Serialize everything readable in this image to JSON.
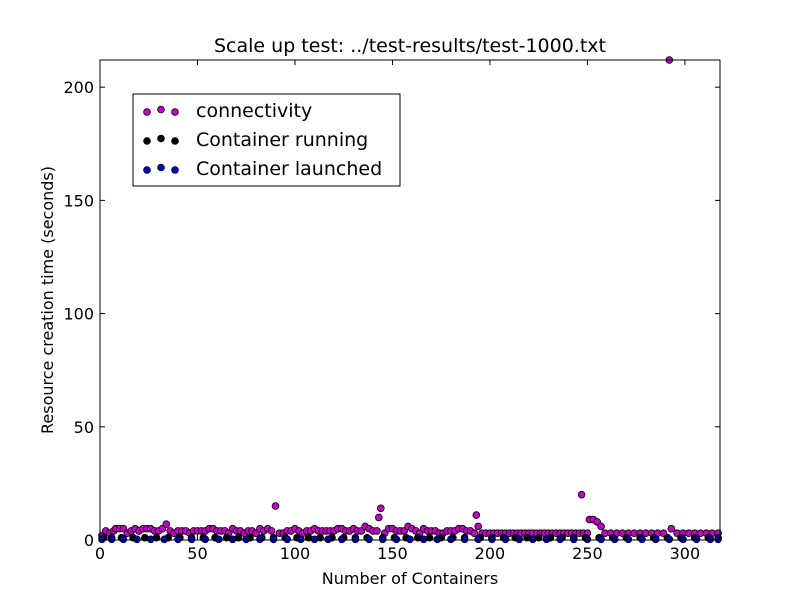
{
  "chart_data": {
    "type": "scatter",
    "title": "Scale up test: ../test-results/test-1000.txt",
    "xlabel": "Number of Containers",
    "ylabel": "Resource creation time (seconds)",
    "xlim": [
      0,
      318
    ],
    "ylim": [
      0,
      212
    ],
    "x_ticks": [
      0,
      50,
      100,
      150,
      200,
      250,
      300
    ],
    "y_ticks": [
      0,
      50,
      100,
      150,
      200
    ],
    "legend_position": "upper-left",
    "grid": false,
    "series": [
      {
        "name": "connectivity",
        "color": "#bf00bf",
        "points": [
          [
            1,
            2
          ],
          [
            3,
            4
          ],
          [
            5,
            3
          ],
          [
            7,
            4
          ],
          [
            8,
            5
          ],
          [
            10,
            5
          ],
          [
            12,
            5
          ],
          [
            14,
            3
          ],
          [
            16,
            4
          ],
          [
            18,
            5
          ],
          [
            20,
            4
          ],
          [
            22,
            5
          ],
          [
            24,
            5
          ],
          [
            26,
            5
          ],
          [
            28,
            4
          ],
          [
            30,
            4
          ],
          [
            32,
            5
          ],
          [
            34,
            7
          ],
          [
            36,
            4
          ],
          [
            38,
            3
          ],
          [
            40,
            4
          ],
          [
            42,
            4
          ],
          [
            44,
            4
          ],
          [
            46,
            3
          ],
          [
            48,
            4
          ],
          [
            50,
            4
          ],
          [
            52,
            4
          ],
          [
            54,
            4
          ],
          [
            56,
            5
          ],
          [
            58,
            5
          ],
          [
            60,
            4
          ],
          [
            62,
            4
          ],
          [
            64,
            4
          ],
          [
            66,
            3
          ],
          [
            68,
            5
          ],
          [
            70,
            4
          ],
          [
            72,
            4
          ],
          [
            74,
            3
          ],
          [
            76,
            4
          ],
          [
            78,
            4
          ],
          [
            80,
            3
          ],
          [
            82,
            5
          ],
          [
            84,
            4
          ],
          [
            86,
            5
          ],
          [
            88,
            4
          ],
          [
            90,
            15
          ],
          [
            92,
            3
          ],
          [
            94,
            3
          ],
          [
            96,
            4
          ],
          [
            98,
            4
          ],
          [
            100,
            5
          ],
          [
            102,
            4
          ],
          [
            104,
            3
          ],
          [
            106,
            4
          ],
          [
            108,
            4
          ],
          [
            110,
            5
          ],
          [
            112,
            4
          ],
          [
            114,
            4
          ],
          [
            116,
            4
          ],
          [
            118,
            4
          ],
          [
            120,
            4
          ],
          [
            122,
            5
          ],
          [
            124,
            5
          ],
          [
            126,
            4
          ],
          [
            128,
            4
          ],
          [
            130,
            5
          ],
          [
            132,
            4
          ],
          [
            134,
            4
          ],
          [
            136,
            6
          ],
          [
            138,
            5
          ],
          [
            140,
            4
          ],
          [
            142,
            4
          ],
          [
            143,
            10
          ],
          [
            144,
            14
          ],
          [
            146,
            3
          ],
          [
            148,
            5
          ],
          [
            150,
            5
          ],
          [
            152,
            4
          ],
          [
            154,
            4
          ],
          [
            156,
            4
          ],
          [
            158,
            6
          ],
          [
            160,
            5
          ],
          [
            162,
            4
          ],
          [
            164,
            3
          ],
          [
            166,
            5
          ],
          [
            168,
            4
          ],
          [
            170,
            4
          ],
          [
            172,
            4
          ],
          [
            174,
            3
          ],
          [
            176,
            3
          ],
          [
            178,
            4
          ],
          [
            180,
            4
          ],
          [
            182,
            4
          ],
          [
            184,
            5
          ],
          [
            186,
            5
          ],
          [
            188,
            4
          ],
          [
            190,
            4
          ],
          [
            192,
            3
          ],
          [
            193,
            11
          ],
          [
            194,
            6
          ],
          [
            196,
            3
          ],
          [
            198,
            3
          ],
          [
            200,
            3
          ],
          [
            202,
            3
          ],
          [
            204,
            3
          ],
          [
            206,
            3
          ],
          [
            208,
            3
          ],
          [
            210,
            3
          ],
          [
            212,
            3
          ],
          [
            214,
            3
          ],
          [
            216,
            3
          ],
          [
            218,
            3
          ],
          [
            220,
            3
          ],
          [
            222,
            3
          ],
          [
            224,
            3
          ],
          [
            226,
            3
          ],
          [
            228,
            3
          ],
          [
            230,
            3
          ],
          [
            232,
            3
          ],
          [
            234,
            3
          ],
          [
            236,
            3
          ],
          [
            238,
            3
          ],
          [
            240,
            3
          ],
          [
            242,
            3
          ],
          [
            244,
            3
          ],
          [
            246,
            3
          ],
          [
            247,
            20
          ],
          [
            248,
            3
          ],
          [
            250,
            3
          ],
          [
            251,
            9
          ],
          [
            253,
            9
          ],
          [
            255,
            8
          ],
          [
            257,
            6
          ],
          [
            259,
            3
          ],
          [
            262,
            3
          ],
          [
            265,
            3
          ],
          [
            268,
            3
          ],
          [
            271,
            3
          ],
          [
            274,
            3
          ],
          [
            277,
            3
          ],
          [
            280,
            3
          ],
          [
            283,
            3
          ],
          [
            286,
            3
          ],
          [
            289,
            3
          ],
          [
            292,
            212
          ],
          [
            293,
            5
          ],
          [
            296,
            3
          ],
          [
            299,
            3
          ],
          [
            302,
            3
          ],
          [
            305,
            3
          ],
          [
            308,
            3
          ],
          [
            311,
            3
          ],
          [
            314,
            3
          ],
          [
            317,
            3
          ]
        ]
      },
      {
        "name": "Container running",
        "color": "#000000",
        "points": [
          [
            2,
            1
          ],
          [
            6,
            1
          ],
          [
            11,
            1
          ],
          [
            17,
            1
          ],
          [
            23,
            1
          ],
          [
            29,
            1
          ],
          [
            35,
            1
          ],
          [
            41,
            1
          ],
          [
            47,
            1
          ],
          [
            53,
            1
          ],
          [
            59,
            1
          ],
          [
            65,
            1
          ],
          [
            71,
            1
          ],
          [
            77,
            1
          ],
          [
            83,
            1
          ],
          [
            89,
            1
          ],
          [
            95,
            1
          ],
          [
            101,
            1
          ],
          [
            107,
            1
          ],
          [
            113,
            1
          ],
          [
            119,
            1
          ],
          [
            125,
            1
          ],
          [
            131,
            1
          ],
          [
            137,
            1
          ],
          [
            145,
            1
          ],
          [
            151,
            1
          ],
          [
            157,
            1
          ],
          [
            163,
            1
          ],
          [
            169,
            1
          ],
          [
            175,
            1
          ],
          [
            181,
            1
          ],
          [
            187,
            1
          ],
          [
            195,
            1
          ],
          [
            201,
            1
          ],
          [
            207,
            1
          ],
          [
            213,
            1
          ],
          [
            219,
            1
          ],
          [
            225,
            1
          ],
          [
            231,
            1
          ],
          [
            237,
            1
          ],
          [
            243,
            1
          ],
          [
            249,
            1
          ],
          [
            256,
            1
          ],
          [
            263,
            1
          ],
          [
            270,
            1
          ],
          [
            277,
            1
          ],
          [
            284,
            1
          ],
          [
            291,
            1
          ],
          [
            298,
            1
          ],
          [
            305,
            1
          ],
          [
            312,
            1
          ],
          [
            317,
            1
          ]
        ]
      },
      {
        "name": "Container launched",
        "color": "#0000bf",
        "points": [
          [
            1,
            0.3
          ],
          [
            6,
            0.3
          ],
          [
            12,
            0.3
          ],
          [
            19,
            0.3
          ],
          [
            26,
            0.3
          ],
          [
            33,
            0.3
          ],
          [
            40,
            0.3
          ],
          [
            47,
            0.3
          ],
          [
            54,
            0.3
          ],
          [
            61,
            0.3
          ],
          [
            68,
            0.3
          ],
          [
            75,
            0.3
          ],
          [
            82,
            0.3
          ],
          [
            89,
            0.3
          ],
          [
            96,
            0.3
          ],
          [
            103,
            0.3
          ],
          [
            110,
            0.3
          ],
          [
            117,
            0.3
          ],
          [
            124,
            0.3
          ],
          [
            131,
            0.3
          ],
          [
            138,
            0.3
          ],
          [
            145,
            0.3
          ],
          [
            152,
            0.3
          ],
          [
            159,
            0.3
          ],
          [
            166,
            0.3
          ],
          [
            173,
            0.3
          ],
          [
            180,
            0.3
          ],
          [
            187,
            0.3
          ],
          [
            194,
            0.3
          ],
          [
            201,
            0.3
          ],
          [
            208,
            0.3
          ],
          [
            215,
            0.3
          ],
          [
            222,
            0.3
          ],
          [
            229,
            0.3
          ],
          [
            236,
            0.3
          ],
          [
            243,
            0.3
          ],
          [
            250,
            0.3
          ],
          [
            257,
            0.3
          ],
          [
            264,
            0.3
          ],
          [
            271,
            0.3
          ],
          [
            278,
            0.3
          ],
          [
            285,
            0.3
          ],
          [
            292,
            0.3
          ],
          [
            299,
            0.3
          ],
          [
            306,
            0.3
          ],
          [
            313,
            0.3
          ],
          [
            317,
            0.3
          ]
        ]
      }
    ]
  }
}
